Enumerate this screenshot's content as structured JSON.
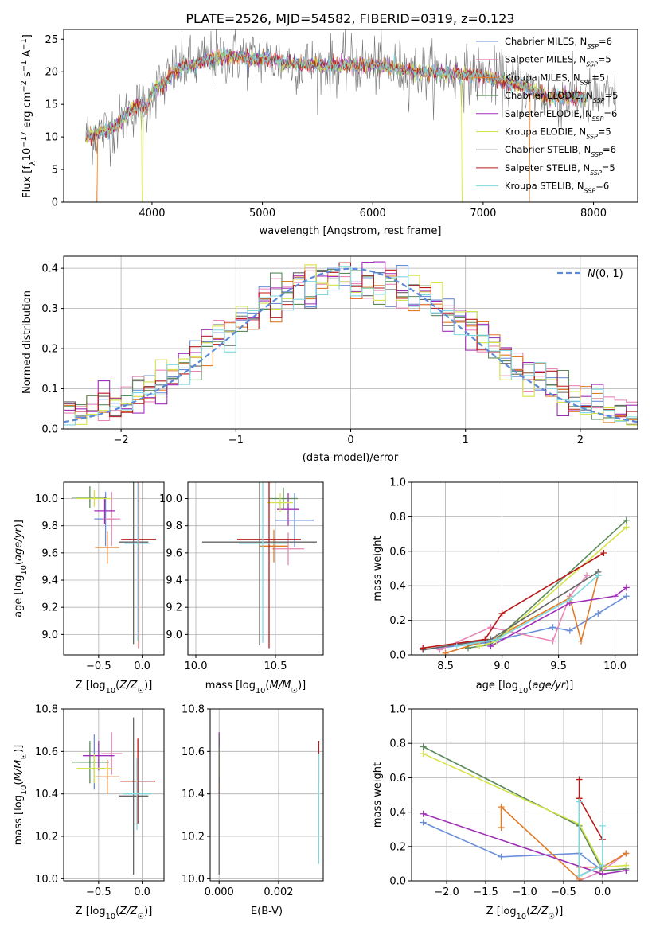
{
  "figure": {
    "title": "PLATE=2526, MJD=54582, FIBERID=0319, z=0.123"
  },
  "models": [
    {
      "name": "Chabrier MILES",
      "nssp": "6",
      "color": "#6a8fd8"
    },
    {
      "name": "Salpeter MILES",
      "nssp": "5",
      "color": "#e787b7"
    },
    {
      "name": "Kroupa MILES",
      "nssp": "5",
      "color": "#e07b28"
    },
    {
      "name": "Chabrier ELODIE",
      "nssp": "5",
      "color": "#5b8a5b"
    },
    {
      "name": "Salpeter ELODIE",
      "nssp": "6",
      "color": "#a02fb8"
    },
    {
      "name": "Kroupa ELODIE",
      "nssp": "5",
      "color": "#d5e34a"
    },
    {
      "name": "Chabrier STELIB",
      "nssp": "6",
      "color": "#666666"
    },
    {
      "name": "Salpeter STELIB",
      "nssp": "5",
      "color": "#b81a1a"
    },
    {
      "name": "Kroupa STELIB",
      "nssp": "6",
      "color": "#7fd8e0"
    }
  ],
  "chart_data": [
    {
      "id": "spectrum",
      "type": "line",
      "xlabel": "wavelength [Angstrom, rest frame]",
      "ylabel": "Flux [f_λ 10^-17 erg cm^-2 s^-1 A^-1]",
      "xlim": [
        3200,
        8400
      ],
      "ylim": [
        0,
        26.5
      ],
      "xticks": [
        4000,
        5000,
        6000,
        7000,
        8000
      ],
      "yticks": [
        0,
        5,
        10,
        15,
        20,
        25
      ],
      "grid": false,
      "legend": "right",
      "continuum": {
        "x": [
          3400,
          3500,
          3600,
          3700,
          3800,
          3900,
          3950,
          4000,
          4100,
          4200,
          4300,
          4400,
          4500,
          4600,
          4700,
          4800,
          4900,
          5000,
          5200,
          5400,
          5600,
          5800,
          6000,
          6200,
          6400,
          6600,
          6800,
          7000,
          7200,
          7400,
          7600
        ],
        "y": [
          10,
          10.5,
          11,
          12,
          14,
          15,
          14,
          17,
          18,
          20,
          21,
          21,
          22,
          22,
          22.5,
          22.5,
          22,
          22,
          21.5,
          21,
          21,
          21,
          21,
          20.5,
          20,
          20,
          19.5,
          19.5,
          18.5,
          17.5,
          16
        ]
      },
      "data_x_range": [
        3400,
        8200
      ]
    },
    {
      "id": "residuals",
      "type": "histogram",
      "xlabel": "(data-model)/error",
      "ylabel": "Normed distribution",
      "xlim": [
        -2.5,
        2.5
      ],
      "ylim": [
        0,
        0.43
      ],
      "xticks": [
        -2,
        -1,
        0,
        1,
        2
      ],
      "yticks": [
        0.0,
        0.1,
        0.2,
        0.3,
        0.4
      ],
      "grid": true,
      "legend": "top-right",
      "reference": {
        "name": "N(0,1)",
        "mean": 0,
        "std": 1,
        "color": "#5b8ad8"
      },
      "bins": {
        "start": -2.5,
        "width": 0.1
      }
    },
    {
      "id": "age-vs-Z",
      "type": "scatter",
      "xlabel": "Z [log10(Z/Z☉)]",
      "ylabel": "age  [log10(age/yr)]",
      "xlim": [
        -0.9,
        0.25
      ],
      "ylim": [
        8.85,
        10.12
      ],
      "xticks": [
        -0.5,
        0.0
      ],
      "yticks": [
        9.0,
        9.2,
        9.4,
        9.6,
        9.8,
        10.0
      ],
      "grid": true,
      "points": [
        {
          "m": 0,
          "x": -0.42,
          "y": 9.85,
          "ex": 0.13,
          "ey": 0.2
        },
        {
          "m": 1,
          "x": -0.35,
          "y": 9.85,
          "ex": 0.1,
          "ey": 0.2
        },
        {
          "m": 2,
          "x": -0.4,
          "y": 9.64,
          "ex": 0.14,
          "ey": 0.12
        },
        {
          "m": 3,
          "x": -0.6,
          "y": 10.01,
          "ex": 0.2,
          "ey": 0.08
        },
        {
          "m": 4,
          "x": -0.43,
          "y": 9.91,
          "ex": 0.12,
          "ey": 0.1
        },
        {
          "m": 5,
          "x": -0.55,
          "y": 10.0,
          "ex": 0.2,
          "ey": 0.06
        },
        {
          "m": 6,
          "x": -0.1,
          "y": 9.68,
          "ex": 0.17,
          "ey": 0.75
        },
        {
          "m": 7,
          "x": -0.04,
          "y": 9.7,
          "ex": 0.2,
          "ey": 0.8
        },
        {
          "m": 8,
          "x": -0.05,
          "y": 9.67,
          "ex": 0.15,
          "ey": 0.72
        }
      ]
    },
    {
      "id": "age-vs-mass",
      "type": "scatter",
      "xlabel": "mass [log10(M/M☉)]",
      "ylabel": "",
      "xlim": [
        9.95,
        10.8
      ],
      "ylim": [
        8.85,
        10.12
      ],
      "xticks": [
        10.0,
        10.5
      ],
      "yticks": [
        9.0,
        9.2,
        9.4,
        9.6,
        9.8,
        10.0
      ],
      "grid": true,
      "points": [
        {
          "m": 0,
          "x": 10.62,
          "y": 9.84,
          "ex": 0.12,
          "ey": 0.2
        },
        {
          "m": 1,
          "x": 10.58,
          "y": 9.63,
          "ex": 0.1,
          "ey": 0.12
        },
        {
          "m": 2,
          "x": 10.49,
          "y": 9.65,
          "ex": 0.09,
          "ey": 0.12
        },
        {
          "m": 3,
          "x": 10.55,
          "y": 10.0,
          "ex": 0.09,
          "ey": 0.08
        },
        {
          "m": 4,
          "x": 10.58,
          "y": 9.92,
          "ex": 0.07,
          "ey": 0.12
        },
        {
          "m": 5,
          "x": 10.53,
          "y": 9.97,
          "ex": 0.08,
          "ey": 0.07
        },
        {
          "m": 6,
          "x": 10.4,
          "y": 9.68,
          "ex": 0.36,
          "ey": 0.76
        },
        {
          "m": 7,
          "x": 10.46,
          "y": 9.7,
          "ex": 0.2,
          "ey": 0.8
        },
        {
          "m": 8,
          "x": 10.42,
          "y": 9.67,
          "ex": 0.15,
          "ey": 0.73
        }
      ]
    },
    {
      "id": "massweight-vs-age",
      "type": "line",
      "xlabel": "age  [log10(age/yr)]",
      "ylabel": "mass weight",
      "xlim": [
        8.2,
        10.2
      ],
      "ylim": [
        0,
        1
      ],
      "xticks": [
        8.5,
        9.0,
        9.5,
        10.0
      ],
      "yticks": [
        0.0,
        0.2,
        0.4,
        0.6,
        0.8,
        1.0
      ],
      "grid": true,
      "series": [
        {
          "m": 0,
          "x": [
            8.3,
            8.85,
            9.45,
            9.6,
            9.85,
            10.1
          ],
          "y": [
            0.03,
            0.07,
            0.16,
            0.14,
            0.24,
            0.34
          ]
        },
        {
          "m": 1,
          "x": [
            8.45,
            8.9,
            9.45,
            9.6,
            9.75
          ],
          "y": [
            0.03,
            0.16,
            0.08,
            0.34,
            0.46
          ]
        },
        {
          "m": 2,
          "x": [
            8.5,
            8.95,
            9.6,
            9.7,
            9.85
          ],
          "y": [
            0.01,
            0.1,
            0.33,
            0.08,
            0.46
          ]
        },
        {
          "m": 3,
          "x": [
            8.7,
            8.9,
            10.1
          ],
          "y": [
            0.04,
            0.06,
            0.78
          ]
        },
        {
          "m": 4,
          "x": [
            8.9,
            9.6,
            10.0,
            10.1
          ],
          "y": [
            0.05,
            0.3,
            0.34,
            0.39
          ]
        },
        {
          "m": 5,
          "x": [
            8.8,
            8.95,
            10.1
          ],
          "y": [
            0.05,
            0.08,
            0.74
          ]
        },
        {
          "m": 6,
          "x": [
            8.3,
            8.9,
            9.85
          ],
          "y": [
            0.03,
            0.09,
            0.48
          ]
        },
        {
          "m": 7,
          "x": [
            8.3,
            8.85,
            9.0,
            9.9
          ],
          "y": [
            0.04,
            0.09,
            0.24,
            0.59
          ]
        },
        {
          "m": 8,
          "x": [
            8.6,
            8.95,
            9.6,
            9.85
          ],
          "y": [
            0.05,
            0.09,
            0.32,
            0.46
          ]
        }
      ]
    },
    {
      "id": "mass-vs-Z",
      "type": "scatter",
      "xlabel": "Z [log10(Z/Z☉)]",
      "ylabel": "mass [log10(M/M☉)]",
      "xlim": [
        -0.9,
        0.25
      ],
      "ylim": [
        9.99,
        10.8
      ],
      "xticks": [
        -0.5,
        0.0
      ],
      "yticks": [
        10.0,
        10.2,
        10.4,
        10.6,
        10.8
      ],
      "grid": true,
      "points": [
        {
          "m": 0,
          "x": -0.55,
          "y": 10.55,
          "ex": 0.17,
          "ey": 0.13
        },
        {
          "m": 1,
          "x": -0.35,
          "y": 10.59,
          "ex": 0.12,
          "ey": 0.1
        },
        {
          "m": 2,
          "x": -0.4,
          "y": 10.48,
          "ex": 0.14,
          "ey": 0.08
        },
        {
          "m": 3,
          "x": -0.6,
          "y": 10.55,
          "ex": 0.2,
          "ey": 0.1
        },
        {
          "m": 4,
          "x": -0.5,
          "y": 10.58,
          "ex": 0.18,
          "ey": 0.07
        },
        {
          "m": 5,
          "x": -0.55,
          "y": 10.52,
          "ex": 0.2,
          "ey": 0.07
        },
        {
          "m": 6,
          "x": -0.1,
          "y": 10.39,
          "ex": 0.17,
          "ey": 0.37
        },
        {
          "m": 7,
          "x": -0.05,
          "y": 10.46,
          "ex": 0.2,
          "ey": 0.2
        },
        {
          "m": 8,
          "x": -0.06,
          "y": 10.4,
          "ex": 0.16,
          "ey": 0.17
        }
      ]
    },
    {
      "id": "mass-vs-EBV",
      "type": "scatter",
      "xlabel": "E(B-V)",
      "ylabel": "",
      "xlim": [
        -0.0003,
        0.0035
      ],
      "ylim": [
        9.99,
        10.8
      ],
      "xticks": [
        0.0,
        0.002
      ],
      "yticks": [
        10.0,
        10.2,
        10.4,
        10.6,
        10.8
      ],
      "grid": true,
      "points": [
        {
          "m": 0,
          "x": 0.0,
          "y": 10.55,
          "ex": 0,
          "ey": 0.13
        },
        {
          "m": 1,
          "x": 0.0,
          "y": 10.59,
          "ex": 0,
          "ey": 0.1
        },
        {
          "m": 2,
          "x": 0.0,
          "y": 10.48,
          "ex": 0,
          "ey": 0.08
        },
        {
          "m": 3,
          "x": 0.0,
          "y": 10.55,
          "ex": 0,
          "ey": 0.1
        },
        {
          "m": 4,
          "x": 0.0,
          "y": 10.62,
          "ex": 0,
          "ey": 0.07
        },
        {
          "m": 5,
          "x": 0.0,
          "y": 10.55,
          "ex": 0,
          "ey": 0.07
        },
        {
          "m": 6,
          "x": 0.0,
          "y": 10.35,
          "ex": 0,
          "ey": 0.33
        },
        {
          "m": 7,
          "x": 0.00335,
          "y": 10.55,
          "ex": 0,
          "ey": 0.1
        },
        {
          "m": 8,
          "x": 0.00335,
          "y": 10.33,
          "ex": 0,
          "ey": 0.26
        }
      ]
    },
    {
      "id": "massweight-vs-Z",
      "type": "line",
      "xlabel": "Z [log10(Z/Z☉)]",
      "ylabel": "mass weight",
      "xlim": [
        -2.45,
        0.45
      ],
      "ylim": [
        0,
        1
      ],
      "xticks": [
        -2.0,
        -1.5,
        -1.0,
        -0.5,
        0.0
      ],
      "yticks": [
        0.0,
        0.2,
        0.4,
        0.6,
        0.8,
        1.0
      ],
      "grid": true,
      "series": [
        {
          "m": 0,
          "x": [
            -2.3,
            -1.3,
            -0.3,
            0.0,
            0.3
          ],
          "y": [
            0.34,
            0.14,
            0.16,
            0.06,
            0.07
          ]
        },
        {
          "m": 1,
          "x": [
            -0.3,
            0.0,
            0.3
          ],
          "y": [
            0.0,
            0.06,
            0.16
          ]
        },
        {
          "m": 2,
          "x": [
            -1.3,
            -1.3,
            -0.3,
            -0.3,
            0.0,
            0.3
          ],
          "y": [
            0.31,
            0.43,
            0.01,
            0.08,
            0.08,
            0.16
          ]
        },
        {
          "m": 3,
          "x": [
            -2.3,
            -0.3,
            0.0,
            0.3
          ],
          "y": [
            0.78,
            0.32,
            0.06,
            0.07
          ]
        },
        {
          "m": 4,
          "x": [
            -2.3,
            0.0,
            0.3
          ],
          "y": [
            0.39,
            0.04,
            0.06
          ]
        },
        {
          "m": 5,
          "x": [
            -2.3,
            -0.3,
            0.0,
            0.3
          ],
          "y": [
            0.74,
            0.33,
            0.08,
            0.09
          ]
        },
        {
          "m": 6,
          "x": [
            -0.3,
            -0.3,
            0.0
          ],
          "y": [
            0.48,
            0.03,
            0.09
          ]
        },
        {
          "m": 7,
          "x": [
            -0.3,
            -0.3,
            0.0
          ],
          "y": [
            0.59,
            0.48,
            0.24
          ]
        },
        {
          "m": 8,
          "x": [
            -0.3,
            -0.3,
            0.0,
            0.0
          ],
          "y": [
            0.46,
            0.03,
            0.09,
            0.32
          ]
        }
      ]
    }
  ]
}
